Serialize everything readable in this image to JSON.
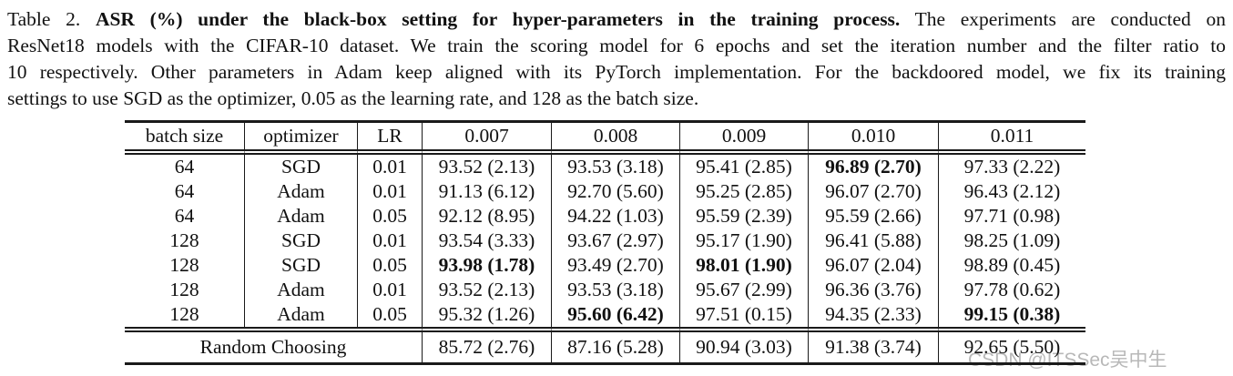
{
  "caption": {
    "line1_prefix": "Table 2. ",
    "line1_bold": "ASR (%) under the black-box setting for hyper-parameters in the training process.",
    "line1_rest": " The experiments are conducted on",
    "line2": "ResNet18 models with the CIFAR-10 dataset. We train the scoring model for 6 epochs and set the iteration number and the filter ratio to",
    "line3": "10 respectively. Other parameters in Adam keep aligned with its PyTorch implementation. For the backdoored model, we fix its training",
    "line4": "settings to use SGD as the optimizer, 0.05 as the learning rate, and 128 as the batch size."
  },
  "table": {
    "headers": [
      "batch size",
      "optimizer",
      "LR",
      "0.007",
      "0.008",
      "0.009",
      "0.010",
      "0.011"
    ],
    "rows": [
      {
        "batch_size": "64",
        "optimizer": "SGD",
        "lr": "0.01",
        "values": [
          "93.52 (2.13)",
          "93.53 (3.18)",
          "95.41 (2.85)",
          "96.89 (2.70)",
          "97.33 (2.22)"
        ],
        "bold": [
          3
        ]
      },
      {
        "batch_size": "64",
        "optimizer": "Adam",
        "lr": "0.01",
        "values": [
          "91.13 (6.12)",
          "92.70 (5.60)",
          "95.25 (2.85)",
          "96.07 (2.70)",
          "96.43 (2.12)"
        ],
        "bold": []
      },
      {
        "batch_size": "64",
        "optimizer": "Adam",
        "lr": "0.05",
        "values": [
          "92.12 (8.95)",
          "94.22 (1.03)",
          "95.59 (2.39)",
          "95.59 (2.66)",
          "97.71 (0.98)"
        ],
        "bold": []
      },
      {
        "batch_size": "128",
        "optimizer": "SGD",
        "lr": "0.01",
        "values": [
          "93.54 (3.33)",
          "93.67 (2.97)",
          "95.17 (1.90)",
          "96.41 (5.88)",
          "98.25 (1.09)"
        ],
        "bold": []
      },
      {
        "batch_size": "128",
        "optimizer": "SGD",
        "lr": "0.05",
        "values": [
          "93.98 (1.78)",
          "93.49 (2.70)",
          "98.01 (1.90)",
          "96.07 (2.04)",
          "98.89 (0.45)"
        ],
        "bold": [
          0,
          2
        ]
      },
      {
        "batch_size": "128",
        "optimizer": "Adam",
        "lr": "0.01",
        "values": [
          "93.52 (2.13)",
          "93.53 (3.18)",
          "95.67 (2.99)",
          "96.36 (3.76)",
          "97.78 (0.62)"
        ],
        "bold": []
      },
      {
        "batch_size": "128",
        "optimizer": "Adam",
        "lr": "0.05",
        "values": [
          "95.32 (1.26)",
          "95.60 (6.42)",
          "97.51 (0.15)",
          "94.35 (2.33)",
          "99.15 (0.38)"
        ],
        "bold": [
          1,
          4
        ]
      }
    ],
    "footer": {
      "label": "Random Choosing",
      "values": [
        "85.72 (2.76)",
        "87.16 (5.28)",
        "90.94 (3.03)",
        "91.38 (3.74)",
        "92.65 (5.50)"
      ]
    }
  },
  "watermark": {
    "text": "CSDN @ITSSec吴中生"
  },
  "colors": {
    "text": "#111111",
    "border": "#1a1a1a",
    "watermark": "#b8b8b8",
    "background": "#ffffff"
  }
}
